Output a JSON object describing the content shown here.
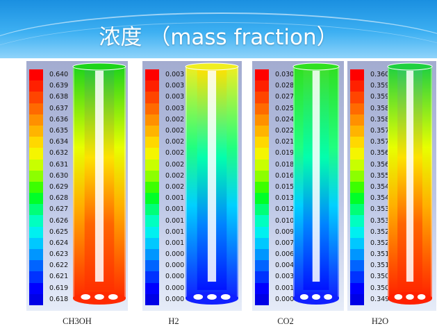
{
  "title": "浓度 （mass fraction）",
  "panels": [
    {
      "label": "CH3OH",
      "ticks": [
        "0.640",
        "0.639",
        "0.638",
        "0.637",
        "0.636",
        "0.635",
        "0.634",
        "0.632",
        "0.631",
        "0.630",
        "0.629",
        "0.628",
        "0.627",
        "0.626",
        "0.625",
        "0.624",
        "0.623",
        "0.622",
        "0.621",
        "0.619",
        "0.618"
      ],
      "colors": {
        "outer_top": "#1ed41a",
        "outer_bottom": "#ff2a00",
        "inner_top": "#28c43a",
        "inner_bottom": "#ff3000"
      }
    },
    {
      "label": "H2",
      "ticks": [
        "0.003",
        "0.003",
        "0.003",
        "0.003",
        "0.002",
        "0.002",
        "0.002",
        "0.002",
        "0.002",
        "0.002",
        "0.002",
        "0.001",
        "0.001",
        "0.001",
        "0.001",
        "0.001",
        "0.000",
        "0.000",
        "0.000",
        "0.000",
        "0.000"
      ],
      "colors": {
        "outer_top": "#f0ee20",
        "outer_bottom": "#1020ff",
        "inner_top": "#ffe000",
        "inner_bottom": "#0010ff"
      }
    },
    {
      "label": "CO2",
      "ticks": [
        "0.030",
        "0.028",
        "0.027",
        "0.025",
        "0.024",
        "0.022",
        "0.021",
        "0.019",
        "0.018",
        "0.016",
        "0.015",
        "0.013",
        "0.012",
        "0.010",
        "0.009",
        "0.007",
        "0.006",
        "0.004",
        "0.003",
        "0.001",
        "0.000"
      ],
      "colors": {
        "outer_top": "#30e020",
        "outer_bottom": "#1020ff",
        "inner_top": "#40e030",
        "inner_bottom": "#0010ff"
      }
    },
    {
      "label": "H2O",
      "ticks": [
        "0.360",
        "0.359",
        "0.359",
        "0.358",
        "0.358",
        "0.357",
        "0.357",
        "0.356",
        "0.356",
        "0.355",
        "0.354",
        "0.354",
        "0.353",
        "0.353",
        "0.352",
        "0.352",
        "0.351",
        "0.351",
        "0.350",
        "0.350",
        "0.349"
      ],
      "colors": {
        "outer_top": "#20d040",
        "outer_bottom": "#ff2000",
        "inner_top": "#30c860",
        "inner_bottom": "#ff2a00"
      }
    }
  ],
  "colormap": [
    "#ff0000",
    "#ff2000",
    "#ff4500",
    "#ff6a00",
    "#ff9000",
    "#ffb400",
    "#ffd800",
    "#f5f500",
    "#c8ff00",
    "#8cff00",
    "#3cff00",
    "#00ff28",
    "#00ff78",
    "#00ffc0",
    "#00f0f0",
    "#00c8ff",
    "#0096ff",
    "#0064ff",
    "#0032ff",
    "#0000ff",
    "#0000e6"
  ]
}
